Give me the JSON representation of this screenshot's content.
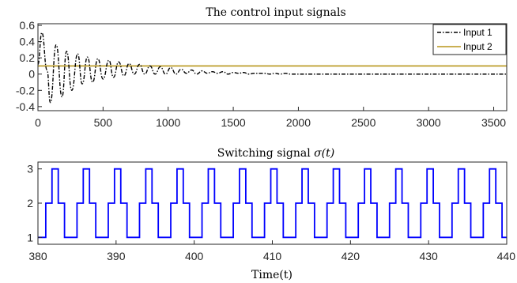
{
  "chart_data": [
    {
      "type": "line",
      "title": "The control input signals",
      "xlabel": "",
      "ylabel": "",
      "xlim": [
        0,
        3600
      ],
      "ylim": [
        -0.45,
        0.62
      ],
      "x_ticks": [
        "0",
        "500",
        "1000",
        "1500",
        "2000",
        "2500",
        "3000",
        "3500"
      ],
      "y_ticks": [
        "0.6",
        "0.4",
        "0.2",
        "0",
        "-0.2",
        "-0.4"
      ],
      "legend_position": "top-right",
      "series": [
        {
          "name": "Input 1",
          "style": "dash-dot",
          "color": "#000000",
          "description_of_shape": "damped oscillation, period about 120",
          "x": [
            0,
            30,
            70,
            95,
            140,
            185,
            220,
            260,
            305,
            340,
            380,
            420,
            460,
            500,
            545,
            580,
            620,
            660,
            700,
            740,
            780,
            820,
            860,
            900,
            940,
            980,
            1020,
            1060,
            1100,
            1140,
            1180,
            1220,
            1260,
            1300,
            1340,
            1380,
            1420,
            1460,
            1500,
            1540,
            1580,
            1620,
            1660,
            1700,
            1740,
            1780,
            1820,
            1860,
            1900,
            1940,
            1980,
            2100,
            2400,
            2800,
            3200,
            3600
          ],
          "values": [
            0.12,
            0.51,
            0.05,
            -0.35,
            0.36,
            -0.28,
            0.28,
            -0.2,
            0.25,
            -0.12,
            0.21,
            -0.1,
            0.19,
            -0.06,
            0.17,
            -0.04,
            0.15,
            -0.02,
            0.13,
            0.0,
            0.12,
            0.0,
            0.1,
            0.0,
            0.09,
            0.0,
            0.08,
            0.0,
            0.06,
            0.01,
            0.05,
            0.0,
            0.04,
            0.01,
            0.03,
            0.01,
            0.03,
            0.0,
            0.02,
            0.01,
            0.02,
            0.0,
            0.01,
            0.01,
            0.01,
            0.0,
            0.01,
            0.0,
            0.01,
            0.0,
            0.0,
            0.0,
            0.0,
            0.0,
            0.0,
            0.0
          ]
        },
        {
          "name": "Input 2",
          "style": "solid",
          "color": "#b8961a",
          "x": [
            0,
            3600
          ],
          "values": [
            0.1,
            0.1
          ]
        }
      ]
    },
    {
      "type": "line",
      "title": "Switching signal ",
      "title_math": "σ(t)",
      "xlabel": "Time(t)",
      "ylabel": "",
      "xlim": [
        380,
        440
      ],
      "ylim": [
        0.8,
        3.2
      ],
      "x_ticks": [
        "380",
        "390",
        "400",
        "410",
        "420",
        "430",
        "440"
      ],
      "y_ticks": [
        "3",
        "2",
        "1"
      ],
      "series": [
        {
          "color": "#0000ff",
          "style": "step",
          "pattern": [
            1,
            2,
            3,
            2,
            1
          ],
          "period": 4,
          "first_rise_at": 381
        }
      ]
    }
  ],
  "colors": {
    "axis": "#262626",
    "input2": "#b8961a",
    "switching": "#0000ff"
  }
}
